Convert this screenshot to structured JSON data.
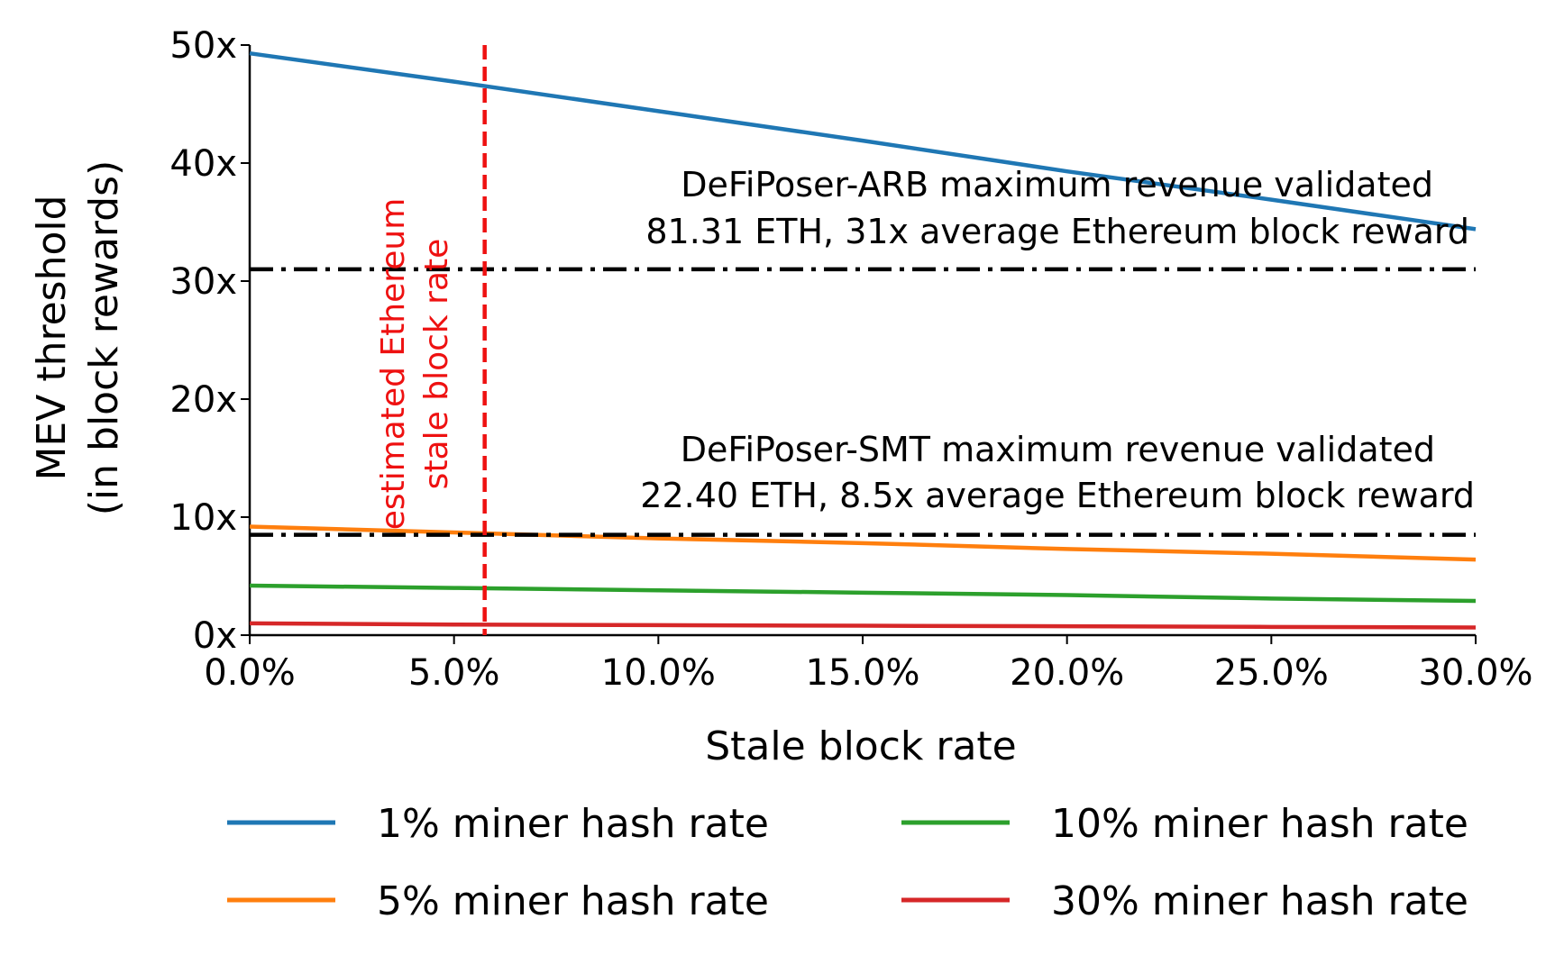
{
  "chart_data": {
    "type": "line",
    "xlabel": "Stale block rate",
    "ylabel_line1": "MEV threshold",
    "ylabel_line2": "(in block rewards)",
    "xlim": [
      0,
      30
    ],
    "ylim": [
      0,
      50
    ],
    "x_ticks": [
      0,
      5,
      10,
      15,
      20,
      25,
      30
    ],
    "x_tick_labels": [
      "0.0%",
      "5.0%",
      "10.0%",
      "15.0%",
      "20.0%",
      "25.0%",
      "30.0%"
    ],
    "y_ticks": [
      0,
      10,
      20,
      30,
      40,
      50
    ],
    "y_tick_labels": [
      "0x",
      "10x",
      "20x",
      "30x",
      "40x",
      "50x"
    ],
    "x": [
      0,
      5,
      10,
      15,
      20,
      25,
      30
    ],
    "series": [
      {
        "name": "1% miner hash rate",
        "color": "#1f77b4",
        "values": [
          49.3,
          46.9,
          44.4,
          41.9,
          39.3,
          36.9,
          34.4
        ]
      },
      {
        "name": "5% miner hash rate",
        "color": "#ff7f0e",
        "values": [
          9.2,
          8.7,
          8.2,
          7.8,
          7.3,
          6.9,
          6.4
        ]
      },
      {
        "name": "10% miner hash rate",
        "color": "#2ca02c",
        "values": [
          4.2,
          4.0,
          3.8,
          3.6,
          3.4,
          3.1,
          2.9
        ]
      },
      {
        "name": "30% miner hash rate",
        "color": "#d62728",
        "values": [
          1.0,
          0.9,
          0.85,
          0.8,
          0.75,
          0.7,
          0.65
        ]
      }
    ],
    "hlines": [
      {
        "y": 31,
        "style": "dashdot",
        "color": "#000000"
      },
      {
        "y": 8.5,
        "style": "dashdot",
        "color": "#000000"
      }
    ],
    "vline": {
      "x": 5.75,
      "style": "dashed",
      "color": "#ee1111"
    },
    "annotations": {
      "arb_line1": "DeFiPoser-ARB maximum revenue validated",
      "arb_line2": "81.31 ETH, 31x average Ethereum block reward",
      "smt_line1": "DeFiPoser-SMT maximum revenue validated",
      "smt_line2": "22.40 ETH, 8.5x average Ethereum block reward",
      "vline_line1": "estimated Ethereum",
      "vline_line2": "stale block rate"
    },
    "legend_position": "bottom",
    "grid": false
  }
}
